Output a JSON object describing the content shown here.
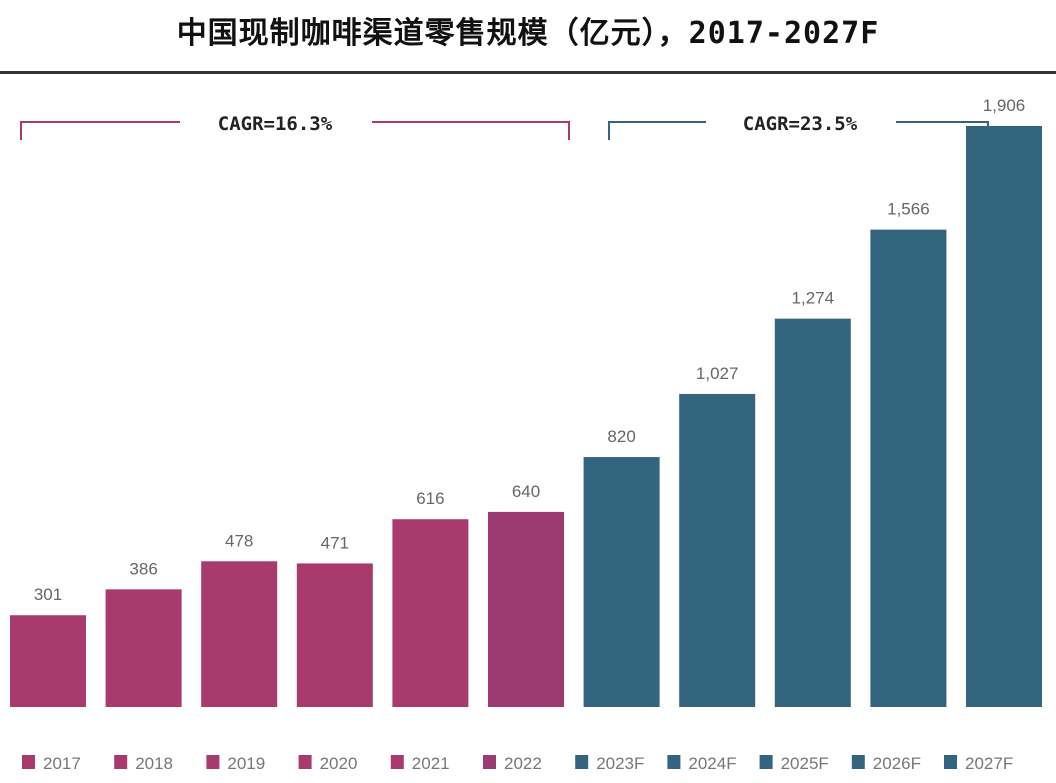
{
  "chart_data": {
    "type": "bar",
    "title": "中国现制咖啡渠道零售规模（亿元），2017-2027F",
    "categories": [
      "2017",
      "2018",
      "2019",
      "2020",
      "2021",
      "2022",
      "2023F",
      "2024F",
      "2025F",
      "2026F",
      "2027F"
    ],
    "values": [
      301,
      386,
      478,
      471,
      616,
      640,
      820,
      1027,
      1274,
      1566,
      1906
    ],
    "value_labels": [
      "301",
      "386",
      "478",
      "471",
      "616",
      "640",
      "820",
      "1,027",
      "1,274",
      "1,566",
      "1,906"
    ],
    "colors": [
      "#A83A6E",
      "#A83A6E",
      "#A83A6E",
      "#A83A6E",
      "#A83A6E",
      "#9B3A73",
      "#34657F",
      "#34657F",
      "#34657F",
      "#34657F",
      "#34657F"
    ],
    "ylim": [
      0,
      1906
    ],
    "annotations": [
      {
        "text": "CAGR=16.3%",
        "from": "2017",
        "to": "2022",
        "color": "#A83A6E"
      },
      {
        "text": "CAGR=23.5%",
        "from": "2023F",
        "to": "2027F",
        "color": "#34657F"
      }
    ],
    "legend": "bottom",
    "grid": false
  }
}
